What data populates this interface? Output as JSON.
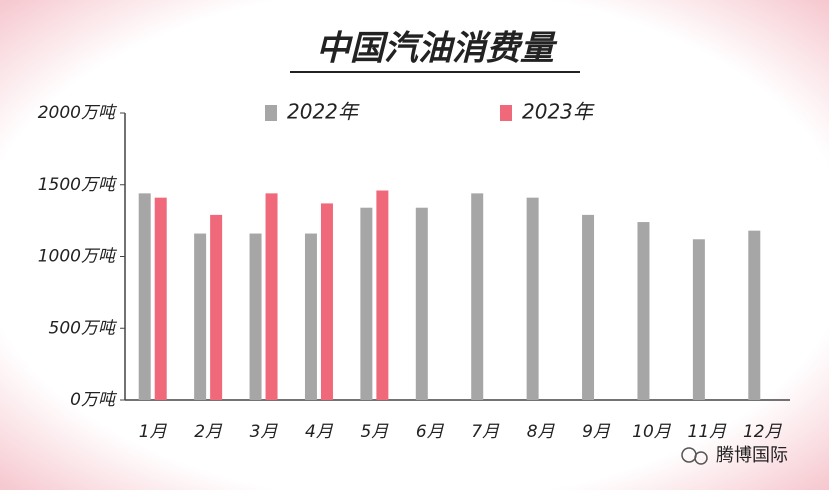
{
  "chart_data": {
    "type": "bar",
    "title": "中国汽油消费量",
    "categories": [
      "1月",
      "2月",
      "3月",
      "4月",
      "5月",
      "6月",
      "7月",
      "8月",
      "9月",
      "10月",
      "11月",
      "12月"
    ],
    "series": [
      {
        "name": "2022年",
        "color": "#a6a6a6",
        "values": [
          1440,
          1160,
          1160,
          1160,
          1340,
          1340,
          1440,
          1410,
          1290,
          1240,
          1120,
          1180
        ]
      },
      {
        "name": "2023年",
        "color": "#f0697a",
        "values": [
          1410,
          1290,
          1440,
          1370,
          1460,
          null,
          null,
          null,
          null,
          null,
          null,
          null
        ]
      }
    ],
    "ylim": [
      0,
      2000
    ],
    "yticks": [
      {
        "value": 0,
        "label": "0万吨"
      },
      {
        "value": 500,
        "label": "500万吨"
      },
      {
        "value": 1000,
        "label": "1000万吨"
      },
      {
        "value": 1500,
        "label": "1500万吨"
      },
      {
        "value": 2000,
        "label": "2000万吨"
      }
    ],
    "grid": false
  },
  "watermark": "腾博国际"
}
